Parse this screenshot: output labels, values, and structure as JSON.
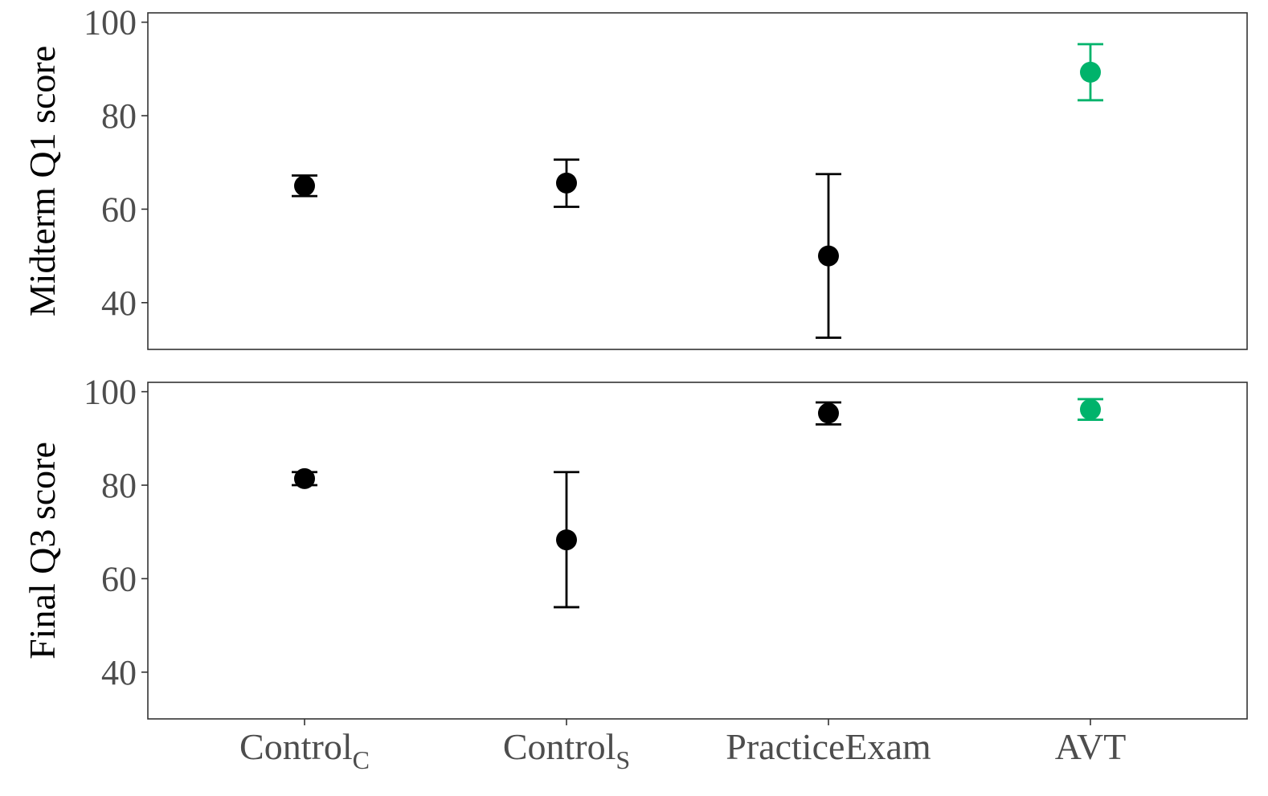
{
  "chart_data": {
    "type": "scatter",
    "categories": [
      {
        "base": "Control",
        "sub": "C"
      },
      {
        "base": "Control",
        "sub": "S"
      },
      {
        "base": "PracticeExam",
        "sub": ""
      },
      {
        "base": "AVT",
        "sub": ""
      }
    ],
    "ylim": [
      30,
      102
    ],
    "yticks": [
      40,
      60,
      80,
      100
    ],
    "grid": false,
    "legend": "none",
    "colors": {
      "default": "#000000",
      "highlight": "#00b36b",
      "axis_text": "#4d4d4d",
      "frame": "#333333"
    },
    "panels": [
      {
        "ylabel": "Midterm Q1 score",
        "series": [
          {
            "category": "ControlC",
            "mean": 65,
            "lower": 62.8,
            "upper": 67.2,
            "color": "#000000"
          },
          {
            "category": "ControlS",
            "mean": 65.6,
            "lower": 60.5,
            "upper": 70.6,
            "color": "#000000"
          },
          {
            "category": "PracticeExam",
            "mean": 50,
            "lower": 32.5,
            "upper": 67.5,
            "color": "#000000"
          },
          {
            "category": "AVT",
            "mean": 89.3,
            "lower": 83.3,
            "upper": 95.3,
            "color": "#00b36b"
          }
        ]
      },
      {
        "ylabel": "Final Q3 score",
        "series": [
          {
            "category": "ControlC",
            "mean": 81.4,
            "lower": 80,
            "upper": 82.8,
            "color": "#000000"
          },
          {
            "category": "ControlS",
            "mean": 68.3,
            "lower": 53.9,
            "upper": 82.8,
            "color": "#000000"
          },
          {
            "category": "PracticeExam",
            "mean": 95.4,
            "lower": 93,
            "upper": 97.7,
            "color": "#000000"
          },
          {
            "category": "AVT",
            "mean": 96.2,
            "lower": 94,
            "upper": 98.4,
            "color": "#00b36b"
          }
        ]
      }
    ]
  }
}
